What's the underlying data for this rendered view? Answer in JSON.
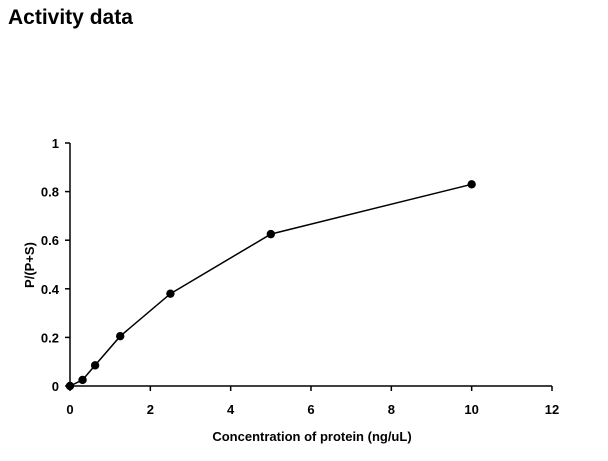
{
  "page": {
    "heading": "Activity data"
  },
  "chart_data": {
    "type": "line",
    "title": "",
    "xlabel": "Concentration of protein (ng/uL)",
    "ylabel": "P/(P+S)",
    "xlim": [
      0,
      12
    ],
    "ylim": [
      0,
      1
    ],
    "x_ticks": [
      0,
      2,
      4,
      6,
      8,
      10,
      12
    ],
    "y_ticks": [
      0,
      0.2,
      0.4,
      0.6,
      0.8,
      1
    ],
    "grid": false,
    "legend": "none",
    "series": [
      {
        "x": [
          0,
          0.3125,
          0.625,
          1.25,
          2.5,
          5,
          10
        ],
        "y": [
          0,
          0.025,
          0.085,
          0.205,
          0.38,
          0.625,
          0.83
        ],
        "color": "#000000",
        "marker": "circle"
      }
    ]
  }
}
